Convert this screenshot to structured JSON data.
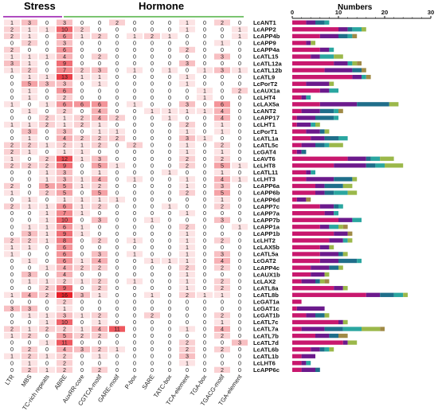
{
  "headers": {
    "stress": "Stress",
    "hormone": "Hormone",
    "numbers": "Numbers"
  },
  "colors": {
    "stress_line": "#b04cc0",
    "hormone_line": "#7bc470",
    "heat_low": "#ffffff",
    "heat_high": "#e8202a",
    "bar_segments": [
      "#c8186e",
      "#6b1a8c",
      "#1f6e8a",
      "#2aa6a0",
      "#9bb84a",
      "#a08a46"
    ]
  },
  "chart_data": [
    {
      "type": "heatmap",
      "columns": [
        "LTR",
        "MBS",
        "TC-rich repeats",
        "ABRE",
        "AuxRR-core",
        "CGTCA-motif",
        "GARE-motif",
        "P-box",
        "SARE",
        "TATC-box",
        "TCA-element",
        "TGA-box",
        "TGACG-motif",
        "TGA-element"
      ],
      "groups": [
        {
          "name": "Stress",
          "columns": [
            "LTR",
            "MBS",
            "TC-rich repeats"
          ]
        },
        {
          "name": "Hormone",
          "columns": [
            "ABRE",
            "AuxRR-core",
            "CGTCA-motif",
            "GARE-motif",
            "P-box",
            "SARE",
            "TATC-box",
            "TCA-element",
            "TGA-box",
            "TGACG-motif",
            "TGA-element"
          ]
        }
      ],
      "rows": [
        "LcANT1",
        "LcAPP2",
        "LcAPP4b",
        "LcAPP9",
        "LcAPP4a",
        "LcATL15",
        "LcATL12a",
        "LcATL12b",
        "LcATL9",
        "LcPorT2",
        "LcAUX1a",
        "LcLHT4",
        "LcLAX5a",
        "LcANT2",
        "LcAPP17",
        "LcLHT1",
        "LcPorT1",
        "LcATL1a",
        "LcATL5c",
        "LcGAT4",
        "LcAVT6",
        "LcLHT8",
        "LcATL11",
        "LcLHT3",
        "LcAPP6a",
        "LcAPP6b",
        "LcAPP6d",
        "LcAPP7c",
        "LcAPP7a",
        "LcAPP7b",
        "LcAPP1a",
        "LcAPP1b",
        "LcLHT2",
        "LcLAX5b",
        "LcATL5a",
        "LcGAT2",
        "LcAPP4c",
        "LcAUX1b",
        "LcLAX2",
        "LcATL8a",
        "LcATL8b",
        "LcGAT1a",
        "LcGAT1c",
        "LcGAT1b",
        "LcATL7c",
        "LcATL7a",
        "LcATL7b",
        "LcATL7d",
        "LcATL6b",
        "LcATL1b",
        "LcLHT6",
        "LcAPP6c"
      ],
      "values": [
        [
          1,
          3,
          0,
          3,
          0,
          0,
          2,
          0,
          0,
          0,
          1,
          0,
          2,
          0
        ],
        [
          2,
          1,
          1,
          10,
          2,
          0,
          0,
          0,
          0,
          0,
          1,
          0,
          0,
          1
        ],
        [
          2,
          1,
          0,
          6,
          1,
          2,
          0,
          1,
          2,
          1,
          0,
          0,
          0,
          1
        ],
        [
          0,
          2,
          0,
          3,
          0,
          0,
          0,
          0,
          0,
          0,
          0,
          0,
          1,
          0
        ],
        [
          2,
          0,
          0,
          6,
          0,
          0,
          0,
          0,
          0,
          0,
          2,
          0,
          0,
          0
        ],
        [
          1,
          1,
          1,
          4,
          0,
          2,
          0,
          0,
          0,
          0,
          0,
          0,
          3,
          0
        ],
        [
          3,
          1,
          0,
          9,
          0,
          0,
          0,
          0,
          0,
          0,
          3,
          0,
          0,
          0
        ],
        [
          1,
          2,
          0,
          7,
          2,
          3,
          0,
          1,
          0,
          1,
          0,
          1,
          3,
          1
        ],
        [
          0,
          1,
          1,
          13,
          1,
          1,
          0,
          0,
          0,
          0,
          1,
          0,
          0,
          0
        ],
        [
          0,
          5,
          3,
          3,
          0,
          1,
          0,
          0,
          0,
          0,
          1,
          0,
          0,
          0
        ],
        [
          0,
          1,
          0,
          6,
          0,
          0,
          0,
          0,
          0,
          0,
          0,
          1,
          0,
          2
        ],
        [
          0,
          1,
          0,
          2,
          0,
          0,
          0,
          0,
          0,
          0,
          0,
          1,
          0,
          0
        ],
        [
          1,
          0,
          1,
          6,
          6,
          6,
          0,
          1,
          0,
          0,
          3,
          0,
          6,
          0
        ],
        [
          0,
          1,
          0,
          2,
          0,
          4,
          0,
          0,
          1,
          1,
          1,
          1,
          4,
          0
        ],
        [
          0,
          0,
          2,
          1,
          2,
          4,
          2,
          0,
          0,
          1,
          0,
          0,
          4,
          0
        ],
        [
          1,
          1,
          2,
          1,
          2,
          1,
          0,
          0,
          0,
          0,
          2,
          0,
          1,
          0
        ],
        [
          0,
          3,
          0,
          3,
          0,
          1,
          1,
          0,
          0,
          0,
          1,
          0,
          1,
          0
        ],
        [
          0,
          1,
          0,
          4,
          2,
          2,
          2,
          0,
          0,
          0,
          3,
          1,
          0,
          0
        ],
        [
          2,
          2,
          1,
          2,
          1,
          2,
          0,
          2,
          0,
          0,
          1,
          0,
          2,
          0
        ],
        [
          2,
          1,
          0,
          1,
          1,
          0,
          0,
          0,
          0,
          0,
          1,
          0,
          1,
          0
        ],
        [
          1,
          0,
          2,
          12,
          1,
          3,
          0,
          0,
          0,
          0,
          2,
          0,
          2,
          0
        ],
        [
          2,
          2,
          2,
          9,
          0,
          5,
          1,
          0,
          0,
          0,
          2,
          0,
          5,
          1
        ],
        [
          0,
          0,
          1,
          3,
          0,
          1,
          0,
          0,
          0,
          1,
          0,
          0,
          1,
          0
        ],
        [
          0,
          0,
          1,
          3,
          1,
          4,
          0,
          1,
          0,
          0,
          1,
          0,
          4,
          1
        ],
        [
          2,
          0,
          5,
          5,
          1,
          2,
          0,
          0,
          0,
          0,
          1,
          0,
          3,
          0
        ],
        [
          1,
          0,
          2,
          5,
          0,
          5,
          0,
          0,
          0,
          0,
          2,
          0,
          5,
          0
        ],
        [
          0,
          1,
          0,
          1,
          1,
          1,
          1,
          0,
          0,
          0,
          0,
          0,
          1,
          0
        ],
        [
          2,
          1,
          1,
          6,
          1,
          2,
          0,
          0,
          0,
          1,
          0,
          0,
          2,
          0
        ],
        [
          0,
          0,
          1,
          7,
          1,
          0,
          0,
          0,
          0,
          0,
          1,
          0,
          0,
          0
        ],
        [
          0,
          0,
          1,
          10,
          0,
          3,
          0,
          0,
          1,
          0,
          0,
          0,
          3,
          0
        ],
        [
          0,
          1,
          1,
          6,
          1,
          0,
          0,
          0,
          0,
          0,
          2,
          0,
          0,
          1
        ],
        [
          0,
          3,
          1,
          9,
          1,
          0,
          0,
          0,
          0,
          0,
          1,
          0,
          0,
          0
        ],
        [
          2,
          2,
          1,
          8,
          0,
          2,
          0,
          1,
          0,
          0,
          1,
          0,
          2,
          0
        ],
        [
          1,
          1,
          0,
          6,
          0,
          0,
          0,
          0,
          0,
          0,
          1,
          0,
          0,
          0
        ],
        [
          1,
          0,
          0,
          6,
          0,
          3,
          0,
          1,
          0,
          0,
          1,
          0,
          3,
          0
        ],
        [
          0,
          1,
          0,
          6,
          1,
          4,
          0,
          0,
          1,
          1,
          1,
          0,
          4,
          0
        ],
        [
          0,
          0,
          1,
          4,
          2,
          2,
          0,
          0,
          0,
          0,
          2,
          0,
          2,
          0
        ],
        [
          0,
          3,
          0,
          4,
          0,
          0,
          0,
          0,
          0,
          0,
          1,
          0,
          0,
          0
        ],
        [
          0,
          1,
          1,
          2,
          1,
          2,
          0,
          1,
          0,
          0,
          1,
          0,
          2,
          0
        ],
        [
          0,
          0,
          2,
          9,
          0,
          2,
          0,
          0,
          0,
          0,
          1,
          0,
          2,
          0
        ],
        [
          1,
          4,
          2,
          16,
          3,
          1,
          0,
          0,
          1,
          0,
          2,
          1,
          1,
          0
        ],
        [
          0,
          0,
          0,
          2,
          0,
          0,
          0,
          0,
          0,
          0,
          0,
          0,
          0,
          0
        ],
        [
          3,
          3,
          0,
          1,
          0,
          0,
          0,
          0,
          0,
          0,
          0,
          0,
          0,
          0
        ],
        [
          0,
          1,
          1,
          3,
          1,
          2,
          0,
          0,
          2,
          0,
          0,
          0,
          2,
          0
        ],
        [
          0,
          0,
          1,
          10,
          0,
          1,
          0,
          0,
          0,
          0,
          0,
          0,
          1,
          0
        ],
        [
          2,
          1,
          2,
          2,
          1,
          4,
          11,
          0,
          0,
          0,
          1,
          0,
          4,
          0
        ],
        [
          1,
          2,
          0,
          5,
          2,
          2,
          0,
          0,
          0,
          0,
          0,
          0,
          2,
          0
        ],
        [
          0,
          0,
          1,
          11,
          0,
          0,
          0,
          0,
          0,
          0,
          2,
          0,
          0,
          3
        ],
        [
          0,
          2,
          0,
          4,
          3,
          2,
          1,
          0,
          0,
          0,
          2,
          0,
          2,
          0
        ],
        [
          1,
          2,
          1,
          2,
          0,
          1,
          0,
          0,
          0,
          0,
          3,
          0,
          0,
          0
        ],
        [
          0,
          1,
          0,
          2,
          0,
          0,
          0,
          0,
          0,
          0,
          1,
          0,
          0,
          0
        ],
        [
          0,
          2,
          1,
          2,
          0,
          2,
          0,
          0,
          0,
          0,
          0,
          0,
          2,
          0
        ]
      ]
    },
    {
      "type": "bar",
      "orientation": "horizontal",
      "stacked": true,
      "title": "Numbers",
      "xlim": [
        0,
        30
      ],
      "xticks": [
        0,
        10,
        20,
        30
      ],
      "categories": [
        "LcANT1",
        "LcAPP2",
        "LcAPP4b",
        "LcAPP9",
        "LcAPP4a",
        "LcATL15",
        "LcATL12a",
        "LcATL12b",
        "LcATL9",
        "LcPorT2",
        "LcAUX1a",
        "LcLHT4",
        "LcLAX5a",
        "LcANT2",
        "LcAPP17",
        "LcLHT1",
        "LcPorT1",
        "LcATL1a",
        "LcATL5c",
        "LcGAT4",
        "LcAVT6",
        "LcLHT8",
        "LcATL11",
        "LcLHT3",
        "LcAPP6a",
        "LcAPP6b",
        "LcAPP6d",
        "LcAPP7c",
        "LcAPP7a",
        "LcAPP7b",
        "LcAPP1a",
        "LcAPP1b",
        "LcLHT2",
        "LcLAX5b",
        "LcATL5a",
        "LcGAT2",
        "LcAPP4c",
        "LcAUX1b",
        "LcLAX2",
        "LcATL8a",
        "LcATL8b",
        "LcGAT1a",
        "LcGAT1c",
        "LcGAT1b",
        "LcATL7c",
        "LcATL7a",
        "LcATL7b",
        "LcATL7d",
        "LcATL6b",
        "LcATL1b",
        "LcLHT6",
        "LcAPP6c"
      ],
      "series": [
        {
          "values": [
            3,
            10,
            6,
            3,
            6,
            4,
            9,
            7,
            13,
            3,
            6,
            2,
            6,
            2,
            1,
            1,
            3,
            4,
            2,
            1,
            12,
            9,
            3,
            3,
            5,
            5,
            1,
            6,
            7,
            10,
            6,
            9,
            8,
            6,
            6,
            6,
            4,
            4,
            2,
            9,
            16,
            2,
            1,
            3,
            10,
            2,
            5,
            11,
            4,
            2,
            2,
            2
          ]
        },
        {
          "values": [
            2,
            2,
            4,
            1,
            2,
            2,
            3,
            6,
            2,
            5,
            2,
            1,
            8,
            4,
            4,
            3,
            3,
            3,
            3,
            1,
            4,
            7,
            1,
            6,
            2,
            2,
            2,
            3,
            2,
            3,
            2,
            3,
            3,
            2,
            4,
            4,
            4,
            3,
            3,
            2,
            3,
            0,
            6,
            2,
            1,
            5,
            3,
            1,
            2,
            3,
            1,
            3
          ]
        },
        {
          "values": [
            2,
            1,
            2,
            0,
            0,
            0,
            0,
            2,
            0,
            0,
            0,
            0,
            7,
            3,
            4,
            0,
            1,
            3,
            2,
            1,
            1,
            2,
            0,
            4,
            4,
            2,
            0,
            1,
            0,
            0,
            0,
            0,
            0,
            0,
            1,
            4,
            2,
            0,
            1,
            0,
            3,
            0,
            0,
            2,
            0,
            4,
            2,
            0,
            1,
            0,
            0,
            1
          ]
        },
        {
          "values": [
            1,
            2,
            1,
            0,
            1,
            3,
            1,
            0,
            1,
            0,
            2,
            1,
            0,
            1,
            1,
            1,
            0,
            2,
            1,
            0,
            2,
            2,
            1,
            0,
            0,
            3,
            0,
            1,
            1,
            2,
            2,
            0,
            1,
            0,
            0,
            1,
            0,
            0,
            0,
            0,
            2,
            0,
            0,
            0,
            0,
            4,
            0,
            0,
            1,
            0,
            1,
            0
          ]
        },
        {
          "values": [
            0,
            1,
            0,
            1,
            0,
            2,
            1,
            0,
            0,
            1,
            0,
            0,
            2,
            0,
            0,
            1,
            1,
            0,
            3,
            0,
            3,
            4,
            0,
            1,
            2,
            2,
            0,
            0,
            0,
            0,
            1,
            0,
            1,
            1,
            1,
            0,
            1,
            1,
            1,
            1,
            1,
            0,
            0,
            1,
            1,
            4,
            0,
            2,
            1,
            0,
            0,
            0
          ]
        },
        {
          "values": [
            0,
            0,
            1,
            0,
            0,
            0,
            1,
            1,
            1,
            0,
            0,
            0,
            0,
            1,
            0,
            0,
            0,
            0,
            0,
            0,
            0,
            0,
            0,
            0,
            0,
            0,
            1,
            0,
            0,
            0,
            1,
            1,
            0,
            0,
            0,
            0,
            0,
            0,
            1,
            0,
            0,
            0,
            0,
            0,
            0,
            1,
            2,
            0,
            0,
            0,
            0,
            0
          ]
        }
      ]
    }
  ]
}
